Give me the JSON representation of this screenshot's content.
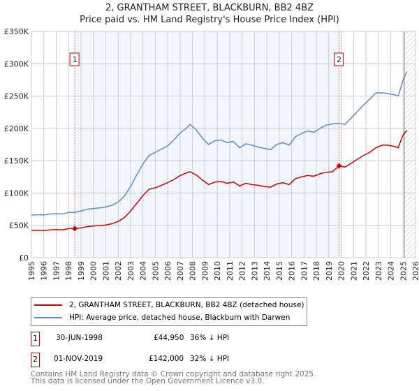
{
  "chart_data": {
    "type": "line",
    "title": "2, GRANTHAM STREET, BLACKBURN, BB2 4BZ",
    "subtitle": "Price paid vs. HM Land Registry's House Price Index (HPI)",
    "xlim": [
      1995,
      2026
    ],
    "ylim": [
      0,
      350000
    ],
    "y_ticks": [
      {
        "v": 0,
        "label": "£0"
      },
      {
        "v": 50000,
        "label": "£50K"
      },
      {
        "v": 100000,
        "label": "£100K"
      },
      {
        "v": 150000,
        "label": "£150K"
      },
      {
        "v": 200000,
        "label": "£200K"
      },
      {
        "v": 250000,
        "label": "£250K"
      },
      {
        "v": 300000,
        "label": "£300K"
      },
      {
        "v": 350000,
        "label": "£350K"
      }
    ],
    "x_ticks": [
      "1995",
      "1996",
      "1997",
      "1998",
      "1999",
      "2000",
      "2001",
      "2002",
      "2003",
      "2004",
      "2005",
      "2006",
      "2007",
      "2008",
      "2009",
      "2010",
      "2011",
      "2012",
      "2013",
      "2014",
      "2015",
      "2016",
      "2017",
      "2018",
      "2019",
      "2020",
      "2021",
      "2022",
      "2023",
      "2024",
      "2025",
      "2026"
    ],
    "grid": true,
    "shaded_range": [
      1998.5,
      2019.83
    ],
    "hatched_from": 2025.1,
    "series": [
      {
        "name": "2, GRANTHAM STREET, BLACKBURN, BB2 4BZ (detached house)",
        "color": "#cc0000",
        "x": [
          1995,
          1995.5,
          1996,
          1996.5,
          1997,
          1997.5,
          1998,
          1998.5,
          1999,
          1999.5,
          2000,
          2000.5,
          2001,
          2001.5,
          2002,
          2002.5,
          2003,
          2003.5,
          2004,
          2004.5,
          2005,
          2005.5,
          2006,
          2006.5,
          2007,
          2007.5,
          2007.8,
          2008.3,
          2008.8,
          2009.3,
          2009.8,
          2010.3,
          2010.8,
          2011.3,
          2011.8,
          2012.3,
          2012.8,
          2013.3,
          2013.8,
          2014.3,
          2014.8,
          2015.3,
          2015.8,
          2016.3,
          2016.8,
          2017.3,
          2017.8,
          2018.3,
          2018.8,
          2019.3,
          2019.83,
          2020.3,
          2020.8,
          2021.3,
          2021.8,
          2022.3,
          2022.8,
          2023.3,
          2023.8,
          2024.3,
          2024.6,
          2025,
          2025.3
        ],
        "y": [
          42000,
          42500,
          42000,
          43000,
          43500,
          43000,
          45000,
          44950,
          46000,
          48000,
          49000,
          49500,
          50500,
          52500,
          56000,
          62000,
          72000,
          84000,
          96000,
          106000,
          108000,
          112000,
          116000,
          121000,
          127000,
          131000,
          133000,
          128000,
          120000,
          113000,
          117000,
          118000,
          115000,
          117000,
          111000,
          115000,
          113000,
          112000,
          110000,
          109000,
          114000,
          116000,
          113000,
          122000,
          125000,
          127000,
          126000,
          130000,
          132000,
          133000,
          142000,
          140000,
          146000,
          152000,
          158000,
          163000,
          170000,
          174000,
          174000,
          172000,
          170000,
          190000,
          197000
        ]
      },
      {
        "name": "HPI: Average price, detached house, Blackburn with Darwen",
        "color": "#5b8ccf",
        "x": [
          1995,
          1995.5,
          1996,
          1996.5,
          1997,
          1997.5,
          1998,
          1998.5,
          1999,
          1999.5,
          2000,
          2000.5,
          2001,
          2001.5,
          2002,
          2002.5,
          2003,
          2003.5,
          2004,
          2004.5,
          2005,
          2005.5,
          2006,
          2006.5,
          2007,
          2007.5,
          2007.8,
          2008.3,
          2008.8,
          2009.3,
          2009.8,
          2010.3,
          2010.8,
          2011.3,
          2011.8,
          2012.3,
          2012.8,
          2013.3,
          2013.8,
          2014.3,
          2014.8,
          2015.3,
          2015.8,
          2016.3,
          2016.8,
          2017.3,
          2017.8,
          2018.3,
          2018.8,
          2019.3,
          2019.83,
          2020.3,
          2020.8,
          2021.3,
          2021.8,
          2022.3,
          2022.8,
          2023.3,
          2023.8,
          2024.3,
          2024.6,
          2025,
          2025.3
        ],
        "y": [
          66000,
          66500,
          66000,
          67500,
          68000,
          67500,
          70000,
          70000,
          72000,
          75000,
          76000,
          77000,
          78500,
          81000,
          86000,
          95000,
          110000,
          128000,
          145000,
          158000,
          163000,
          168000,
          173000,
          182000,
          193000,
          200000,
          206000,
          198000,
          185000,
          175000,
          181000,
          182000,
          178000,
          180000,
          170000,
          176000,
          174000,
          171000,
          169000,
          167000,
          175000,
          178000,
          174000,
          187000,
          192000,
          196000,
          194000,
          200000,
          205000,
          207000,
          208000,
          206000,
          216000,
          226000,
          236000,
          245000,
          255000,
          255000,
          254000,
          252000,
          250000,
          275000,
          288000
        ]
      }
    ],
    "annotations": [
      {
        "label": "1",
        "x": 1998.5,
        "y": 44950
      },
      {
        "label": "2",
        "x": 2019.83,
        "y": 142000
      }
    ]
  },
  "legend": {
    "items": [
      "2, GRANTHAM STREET, BLACKBURN, BB2 4BZ (detached house)",
      "HPI: Average price, detached house, Blackburn with Darwen"
    ]
  },
  "sales": [
    {
      "id": "1",
      "date": "30-JUN-1998",
      "price": "£44,950",
      "hpi": "36% ↓ HPI"
    },
    {
      "id": "2",
      "date": "01-NOV-2019",
      "price": "£142,000",
      "hpi": "32% ↓ HPI"
    }
  ],
  "footer": {
    "line1": "Contains HM Land Registry data © Crown copyright and database right 2025.",
    "line2": "This data is licensed under the Open Government Licence v3.0."
  }
}
